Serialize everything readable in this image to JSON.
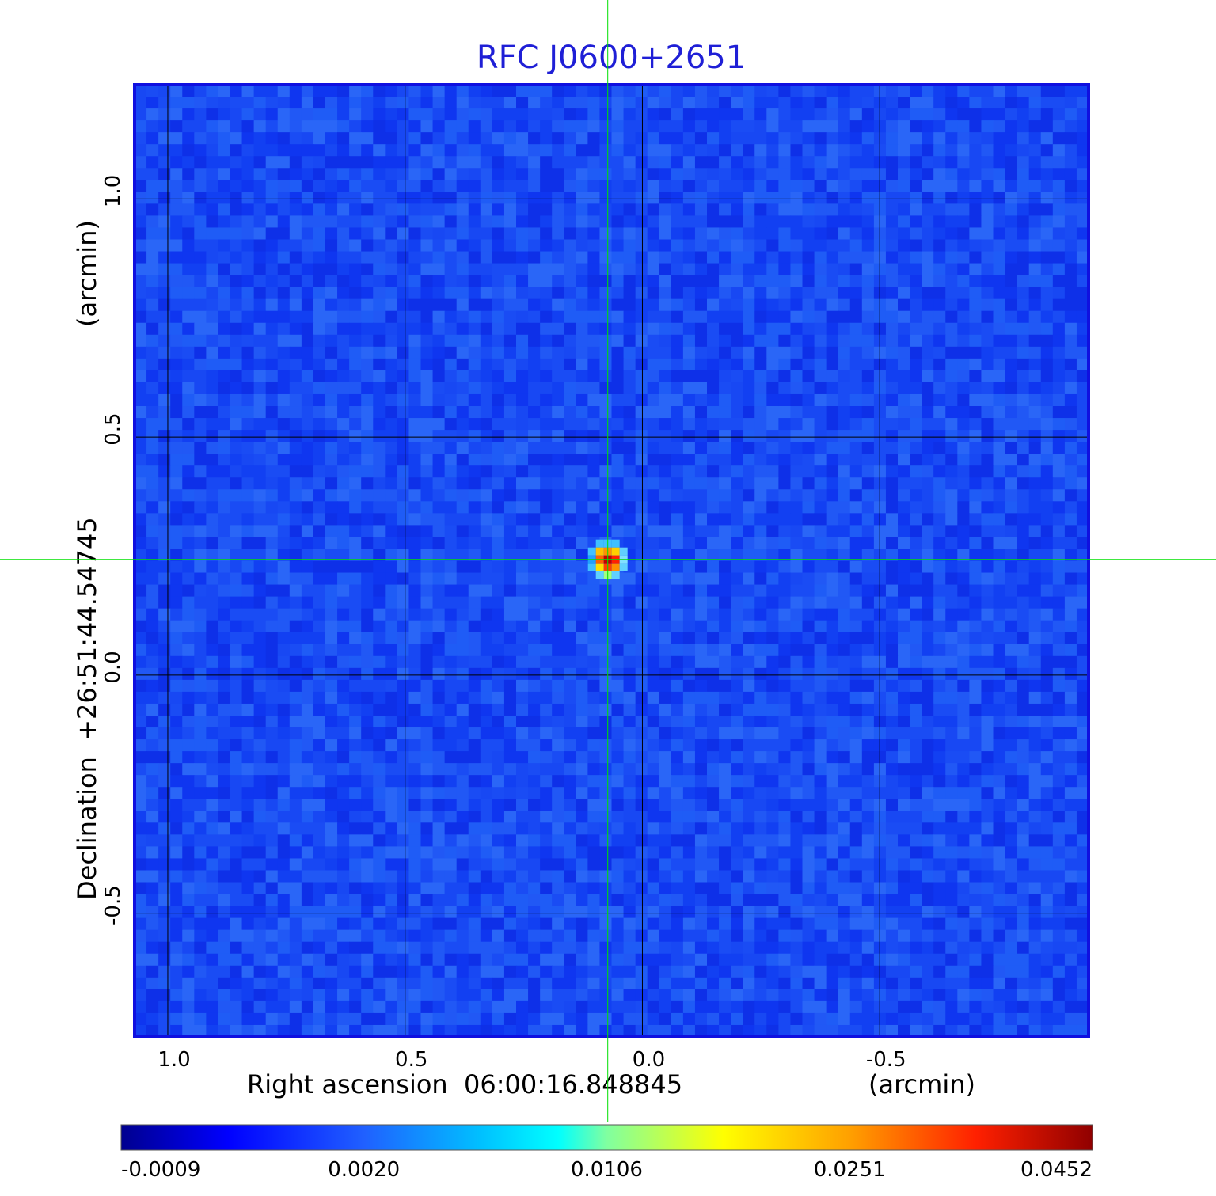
{
  "chart_data": {
    "type": "heatmap",
    "title": "RFC J0600+2651",
    "xlabel": "Right ascension  06:00:16.848845",
    "xlabel_unit": "(arcmin)",
    "ylabel": "Declination  +26:51:44.54745",
    "ylabel_unit": "(arcmin)",
    "xlim": [
      1.07,
      -0.94
    ],
    "ylim": [
      -0.76,
      1.24
    ],
    "x_ticks": [
      {
        "value": 1.0,
        "label": "1.0"
      },
      {
        "value": 0.5,
        "label": "0.5"
      },
      {
        "value": 0.0,
        "label": "0.0"
      },
      {
        "value": -0.5,
        "label": "-0.5"
      }
    ],
    "y_ticks": [
      {
        "value": 1.0,
        "label": "1.0"
      },
      {
        "value": 0.5,
        "label": "0.5"
      },
      {
        "value": 0.0,
        "label": "0.0"
      },
      {
        "value": -0.5,
        "label": "-0.5"
      }
    ],
    "grid": true,
    "grid_color": "#000000",
    "crosshair": {
      "x": 0.073,
      "y": 0.243,
      "color": "#00e000"
    },
    "source": {
      "x": 0.073,
      "y": 0.243,
      "peak": 0.0452
    },
    "background_level": 0.0,
    "colormap": "jet",
    "colorbar": {
      "labels": [
        "-0.0009",
        "0.0020",
        "0.0106",
        "0.0251",
        "0.0452"
      ],
      "min": -0.0009,
      "max": 0.0452
    },
    "frame_color": "#1010e0"
  }
}
